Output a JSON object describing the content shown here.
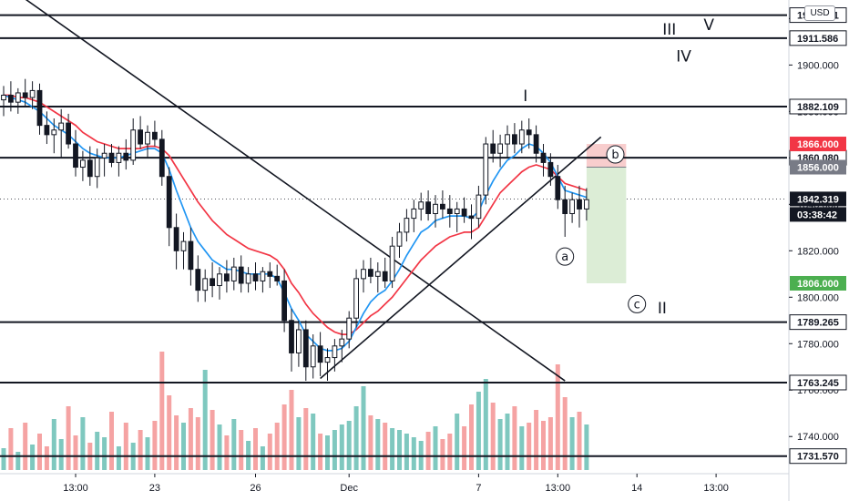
{
  "currency_button": "USD",
  "countdown": "03:38:42",
  "colors": {
    "up": "#131722",
    "ema_fast": "#2196f3",
    "ema_slow": "#f23645",
    "vol_up": "#7fc8bf",
    "vol_down": "#f5a3a3",
    "stop_zone": "#f8cdcd",
    "target_zone": "#dcedd6",
    "last_price_bg": "#131722",
    "green_label": "#4caf50",
    "red_label": "#f23645",
    "gray_label": "#787b86"
  },
  "wave_labels": [
    "I",
    "II",
    "III",
    "IV",
    "V"
  ],
  "circle_labels": [
    "a",
    "b",
    "c"
  ],
  "chart_data": {
    "type": "candlestick",
    "title": "",
    "xlabel": "",
    "ylabel": "",
    "ylim": [
      1724.0,
      1928.0
    ],
    "y_ticks": [
      "1920.000",
      "1900.000",
      "1880.000",
      "1860.000",
      "1840.000",
      "1820.000",
      "1800.000",
      "1780.000",
      "1760.000",
      "1740.000"
    ],
    "x_ticks": [
      {
        "label": "13:00",
        "index": 10
      },
      {
        "label": "23",
        "index": 21
      },
      {
        "label": "26",
        "index": 35
      },
      {
        "label": "Dec",
        "index": 48
      },
      {
        "label": "7",
        "index": 66
      },
      {
        "label": "13:00",
        "index": 77
      },
      {
        "label": "14",
        "index": 88
      },
      {
        "label": "13:00",
        "index": 99
      }
    ],
    "horizontal_levels": [
      {
        "price": 1921.491,
        "label": "1921.491",
        "style": "white"
      },
      {
        "price": 1911.586,
        "label": "1911.586",
        "style": "white"
      },
      {
        "price": 1882.109,
        "label": "1882.109",
        "style": "white"
      },
      {
        "price": 1860.08,
        "label": "1860.080",
        "style": "white"
      },
      {
        "price": 1789.265,
        "label": "1789.265",
        "style": "white"
      },
      {
        "price": 1763.245,
        "label": "1763.245",
        "style": "white"
      },
      {
        "price": 1731.57,
        "label": "1731.570",
        "style": "white"
      }
    ],
    "price_labels": [
      {
        "price": 1866.0,
        "label": "1866.000",
        "style": "red"
      },
      {
        "price": 1856.0,
        "label": "1856.000",
        "style": "gray"
      },
      {
        "price": 1842.319,
        "label": "1842.319",
        "style": "dark"
      },
      {
        "price": 1806.0,
        "label": "1806.000",
        "style": "green"
      }
    ],
    "position_tool": {
      "entry": 1856.0,
      "stop": 1866.0,
      "target": 1806.0,
      "start_index": 81,
      "end_index": 86.5
    },
    "trendlines": [
      {
        "x1": 0,
        "y1": 1935.0,
        "x2": 78,
        "y2": 1764.0
      },
      {
        "x1": 44,
        "y1": 1765.0,
        "x2": 83,
        "y2": 1869.0
      }
    ],
    "candles": [
      [
        1885,
        1891,
        1878,
        1887
      ],
      [
        1887,
        1893,
        1880,
        1884
      ],
      [
        1884,
        1890,
        1879,
        1888
      ],
      [
        1888,
        1894,
        1882,
        1886
      ],
      [
        1886,
        1893,
        1881,
        1889
      ],
      [
        1889,
        1892,
        1870,
        1874
      ],
      [
        1874,
        1880,
        1866,
        1870
      ],
      [
        1870,
        1877,
        1862,
        1872
      ],
      [
        1872,
        1881,
        1860,
        1875
      ],
      [
        1875,
        1879,
        1864,
        1866
      ],
      [
        1866,
        1872,
        1852,
        1856
      ],
      [
        1856,
        1863,
        1850,
        1859
      ],
      [
        1859,
        1865,
        1848,
        1852
      ],
      [
        1852,
        1864,
        1847,
        1860
      ],
      [
        1860,
        1866,
        1852,
        1862
      ],
      [
        1862,
        1866,
        1856,
        1858
      ],
      [
        1858,
        1865,
        1852,
        1862
      ],
      [
        1862,
        1868,
        1855,
        1859
      ],
      [
        1859,
        1877,
        1857,
        1872
      ],
      [
        1872,
        1878,
        1864,
        1866
      ],
      [
        1866,
        1874,
        1860,
        1871
      ],
      [
        1871,
        1876,
        1865,
        1868
      ],
      [
        1868,
        1872,
        1848,
        1852
      ],
      [
        1852,
        1856,
        1822,
        1830
      ],
      [
        1830,
        1836,
        1812,
        1820
      ],
      [
        1820,
        1828,
        1812,
        1824
      ],
      [
        1824,
        1830,
        1805,
        1812
      ],
      [
        1812,
        1818,
        1798,
        1803
      ],
      [
        1803,
        1812,
        1798,
        1808
      ],
      [
        1808,
        1815,
        1800,
        1805
      ],
      [
        1805,
        1813,
        1799,
        1810
      ],
      [
        1810,
        1816,
        1802,
        1807
      ],
      [
        1807,
        1817,
        1803,
        1813
      ],
      [
        1813,
        1818,
        1802,
        1806
      ],
      [
        1806,
        1813,
        1802,
        1810
      ],
      [
        1810,
        1815,
        1803,
        1807
      ],
      [
        1807,
        1813,
        1802,
        1811
      ],
      [
        1811,
        1815,
        1804,
        1809
      ],
      [
        1809,
        1814,
        1805,
        1807
      ],
      [
        1807,
        1812,
        1785,
        1790
      ],
      [
        1790,
        1795,
        1768,
        1776
      ],
      [
        1776,
        1790,
        1770,
        1786
      ],
      [
        1786,
        1790,
        1764,
        1770
      ],
      [
        1770,
        1784,
        1765,
        1779
      ],
      [
        1779,
        1785,
        1766,
        1772
      ],
      [
        1772,
        1778,
        1764,
        1774
      ],
      [
        1774,
        1782,
        1768,
        1779
      ],
      [
        1779,
        1786,
        1772,
        1782
      ],
      [
        1782,
        1794,
        1778,
        1791
      ],
      [
        1791,
        1812,
        1787,
        1808
      ],
      [
        1808,
        1816,
        1802,
        1812
      ],
      [
        1812,
        1817,
        1806,
        1809
      ],
      [
        1809,
        1815,
        1802,
        1811
      ],
      [
        1811,
        1817,
        1804,
        1807
      ],
      [
        1807,
        1826,
        1804,
        1822
      ],
      [
        1822,
        1832,
        1817,
        1828
      ],
      [
        1828,
        1838,
        1824,
        1834
      ],
      [
        1834,
        1842,
        1828,
        1838
      ],
      [
        1838,
        1845,
        1833,
        1841
      ],
      [
        1841,
        1846,
        1833,
        1836
      ],
      [
        1836,
        1844,
        1830,
        1840
      ],
      [
        1840,
        1846,
        1834,
        1838
      ],
      [
        1838,
        1844,
        1830,
        1836
      ],
      [
        1836,
        1841,
        1828,
        1838
      ],
      [
        1838,
        1843,
        1832,
        1835
      ],
      [
        1835,
        1840,
        1825,
        1834
      ],
      [
        1834,
        1848,
        1830,
        1844
      ],
      [
        1844,
        1869,
        1840,
        1866
      ],
      [
        1866,
        1872,
        1858,
        1862
      ],
      [
        1862,
        1870,
        1856,
        1866
      ],
      [
        1866,
        1874,
        1860,
        1870
      ],
      [
        1870,
        1875,
        1862,
        1866
      ],
      [
        1866,
        1876,
        1862,
        1872
      ],
      [
        1872,
        1877,
        1864,
        1870
      ],
      [
        1870,
        1874,
        1858,
        1862
      ],
      [
        1862,
        1866,
        1852,
        1858
      ],
      [
        1858,
        1862,
        1848,
        1852
      ],
      [
        1852,
        1857,
        1838,
        1842
      ],
      [
        1842,
        1848,
        1826,
        1836
      ],
      [
        1836,
        1845,
        1832,
        1842
      ],
      [
        1842,
        1848,
        1830,
        1838
      ],
      [
        1838,
        1847,
        1833,
        1842
      ]
    ],
    "ema_fast": [
      1887,
      1886,
      1885,
      1884,
      1882,
      1880,
      1877,
      1874,
      1872,
      1870,
      1867,
      1864,
      1862,
      1861,
      1860,
      1860,
      1860,
      1861,
      1862,
      1863,
      1864,
      1864,
      1862,
      1855,
      1846,
      1838,
      1830,
      1824,
      1820,
      1816,
      1814,
      1812,
      1812,
      1811,
      1810,
      1810,
      1810,
      1810,
      1808,
      1802,
      1795,
      1790,
      1784,
      1781,
      1778,
      1777,
      1777,
      1778,
      1781,
      1787,
      1793,
      1798,
      1801,
      1803,
      1807,
      1812,
      1818,
      1823,
      1828,
      1830,
      1833,
      1834,
      1835,
      1835,
      1835,
      1834,
      1837,
      1844,
      1850,
      1855,
      1859,
      1861,
      1864,
      1866,
      1865,
      1862,
      1858,
      1852,
      1846,
      1845,
      1844,
      1843
    ],
    "ema_slow": [
      1887,
      1887,
      1886,
      1886,
      1885,
      1884,
      1882,
      1880,
      1878,
      1876,
      1874,
      1871,
      1869,
      1867,
      1866,
      1865,
      1864,
      1864,
      1864,
      1864,
      1865,
      1865,
      1864,
      1861,
      1856,
      1851,
      1846,
      1841,
      1837,
      1833,
      1830,
      1827,
      1825,
      1823,
      1821,
      1820,
      1819,
      1818,
      1816,
      1812,
      1806,
      1802,
      1797,
      1793,
      1790,
      1787,
      1785,
      1784,
      1784,
      1786,
      1789,
      1792,
      1794,
      1797,
      1800,
      1804,
      1808,
      1812,
      1816,
      1819,
      1822,
      1824,
      1826,
      1827,
      1828,
      1828,
      1830,
      1835,
      1840,
      1845,
      1848,
      1851,
      1854,
      1856,
      1857,
      1856,
      1855,
      1852,
      1849,
      1848,
      1847,
      1846
    ],
    "volume": [
      1.2,
      2.3,
      1.0,
      2.6,
      1.4,
      2.0,
      1.3,
      2.8,
      1.7,
      3.5,
      1.9,
      2.9,
      1.5,
      2.1,
      1.8,
      3.2,
      1.3,
      2.6,
      1.5,
      2.2,
      1.8,
      2.7,
      6.5,
      4.1,
      3.0,
      2.6,
      3.4,
      2.9,
      5.5,
      3.3,
      2.5,
      1.9,
      2.8,
      2.2,
      1.6,
      2.3,
      1.3,
      2.0,
      2.6,
      3.6,
      4.4,
      2.9,
      3.4,
      3.1,
      2.0,
      1.9,
      2.2,
      2.5,
      2.7,
      3.5,
      4.6,
      3.0,
      2.8,
      2.6,
      2.3,
      2.2,
      2.0,
      1.8,
      1.6,
      2.1,
      2.4,
      1.7,
      2.0,
      3.1,
      2.4,
      3.6,
      4.3,
      5.0,
      3.7,
      2.8,
      3.1,
      3.5,
      2.4,
      2.6,
      3.3,
      2.7,
      2.9,
      5.8,
      4.0,
      2.9,
      3.2,
      2.5
    ]
  }
}
